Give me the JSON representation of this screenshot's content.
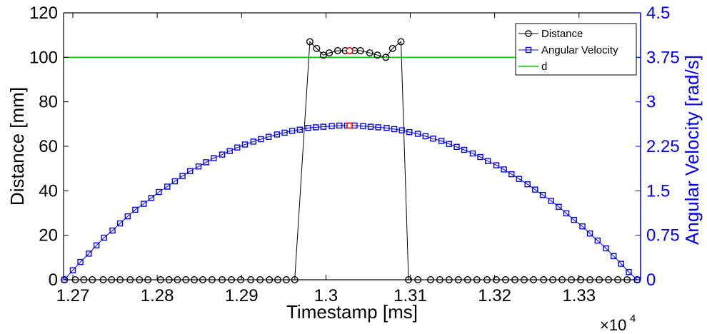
{
  "chart_data": {
    "type": "line",
    "xlabel": "Timestamp  [ms]",
    "ylabel_left": "Distance [mm]",
    "ylabel_right": "Angular Velocity [rad/s]",
    "x_exponent_label": "×10",
    "x_exponent_power": "4",
    "xlim": [
      1.2689,
      1.3373
    ],
    "ylim_left": [
      0,
      120
    ],
    "ylim_right": [
      0,
      4.5
    ],
    "x_ticks": [
      1.27,
      1.28,
      1.29,
      1.3,
      1.31,
      1.32,
      1.33
    ],
    "x_tick_labels": [
      "1.27",
      "1.28",
      "1.29",
      "1.3",
      "1.31",
      "1.32",
      "1.33"
    ],
    "y_left_ticks": [
      0,
      20,
      40,
      60,
      80,
      100,
      120
    ],
    "y_left_tick_labels": [
      "0",
      "20",
      "40",
      "60",
      "80",
      "100",
      "120"
    ],
    "y_right_ticks": [
      0,
      0.75,
      1.5,
      2.25,
      3,
      3.75,
      4.5
    ],
    "y_right_tick_labels": [
      "0",
      "0.75",
      "1.5",
      "2.25",
      "3",
      "3.75",
      "4.5"
    ],
    "grid": false,
    "legend_placement": "top-right",
    "colors": {
      "distance": "#000000",
      "angular_velocity": "#0000ff",
      "threshold": "#00cc00",
      "highlight": "#ff0000"
    },
    "series": [
      {
        "name": "Distance",
        "axis": "left",
        "marker": "circle",
        "x": [
          1.269,
          1.2703,
          1.2713,
          1.2723,
          1.2736,
          1.2746,
          1.2756,
          1.2768,
          1.2779,
          1.2789,
          1.2804,
          1.2814,
          1.2824,
          1.2834,
          1.2844,
          1.2854,
          1.2865,
          1.2877,
          1.2888,
          1.2899,
          1.2911,
          1.2922,
          1.2933,
          1.2943,
          1.2953,
          1.2963,
          1.2981,
          1.2989,
          1.2997,
          1.3004,
          1.3014,
          1.3023,
          1.3034,
          1.3041,
          1.3052,
          1.3061,
          1.3071,
          1.3079,
          1.3089,
          1.3098,
          1.3109,
          1.3124,
          1.3135,
          1.3146,
          1.3157,
          1.3168,
          1.3179,
          1.3191,
          1.3202,
          1.3213,
          1.3224,
          1.3235,
          1.3246,
          1.3258,
          1.3269,
          1.328,
          1.3291,
          1.3302,
          1.3313,
          1.3324,
          1.3335,
          1.3346,
          1.3357,
          1.3369
        ],
        "y": [
          0,
          0,
          0,
          0,
          0,
          0,
          0,
          0,
          0,
          0,
          0,
          0,
          0,
          0,
          0,
          0,
          0,
          0,
          0,
          0,
          0,
          0,
          0,
          0,
          0,
          0,
          107,
          104,
          101,
          102,
          103,
          103,
          103,
          103,
          102,
          101,
          100,
          104,
          107,
          0,
          0,
          0,
          0,
          0,
          0,
          0,
          0,
          0,
          0,
          0,
          0,
          0,
          0,
          0,
          0,
          0,
          0,
          0,
          0,
          0,
          0,
          0,
          0,
          0
        ]
      },
      {
        "name": "Angular Velocity",
        "axis": "right",
        "marker": "square",
        "x": [
          1.269,
          1.27,
          1.2709,
          1.2719,
          1.2728,
          1.2737,
          1.2747,
          1.2756,
          1.2765,
          1.2774,
          1.2784,
          1.2793,
          1.2802,
          1.2812,
          1.2821,
          1.283,
          1.2839,
          1.2849,
          1.2858,
          1.2867,
          1.2877,
          1.2886,
          1.2895,
          1.2904,
          1.2914,
          1.2923,
          1.2932,
          1.2942,
          1.2951,
          1.296,
          1.2969,
          1.2979,
          1.2988,
          1.2997,
          1.3007,
          1.3016,
          1.3025,
          1.3034,
          1.3044,
          1.3053,
          1.3062,
          1.3072,
          1.3081,
          1.309,
          1.3099,
          1.3109,
          1.3118,
          1.3127,
          1.3137,
          1.3146,
          1.3155,
          1.3164,
          1.3174,
          1.3183,
          1.3192,
          1.3202,
          1.3211,
          1.322,
          1.3229,
          1.3239,
          1.3248,
          1.3257,
          1.3267,
          1.3276,
          1.3285,
          1.3294,
          1.3304,
          1.3313,
          1.3322,
          1.3332,
          1.3341,
          1.335,
          1.3359,
          1.3369
        ],
        "y": [
          0.0,
          0.16,
          0.3,
          0.44,
          0.58,
          0.71,
          0.83,
          0.95,
          1.07,
          1.18,
          1.28,
          1.38,
          1.48,
          1.57,
          1.66,
          1.75,
          1.83,
          1.91,
          1.98,
          2.05,
          2.11,
          2.17,
          2.23,
          2.28,
          2.33,
          2.37,
          2.41,
          2.45,
          2.48,
          2.51,
          2.53,
          2.56,
          2.57,
          2.58,
          2.59,
          2.6,
          2.6,
          2.6,
          2.59,
          2.58,
          2.57,
          2.56,
          2.54,
          2.52,
          2.49,
          2.46,
          2.42,
          2.38,
          2.34,
          2.29,
          2.24,
          2.19,
          2.13,
          2.07,
          2.0,
          1.93,
          1.86,
          1.78,
          1.7,
          1.61,
          1.52,
          1.43,
          1.33,
          1.23,
          1.12,
          1.01,
          0.9,
          0.78,
          0.66,
          0.53,
          0.4,
          0.27,
          0.13,
          0.0
        ]
      },
      {
        "name": "d",
        "axis": "left",
        "marker": "none",
        "x": [
          1.2689,
          1.3373
        ],
        "y": [
          100,
          100
        ]
      }
    ],
    "highlight_points": [
      {
        "series": "Distance",
        "x": 1.3028,
        "y": 103
      },
      {
        "series": "Angular Velocity",
        "x": 1.3028,
        "y": 2.6
      }
    ]
  }
}
